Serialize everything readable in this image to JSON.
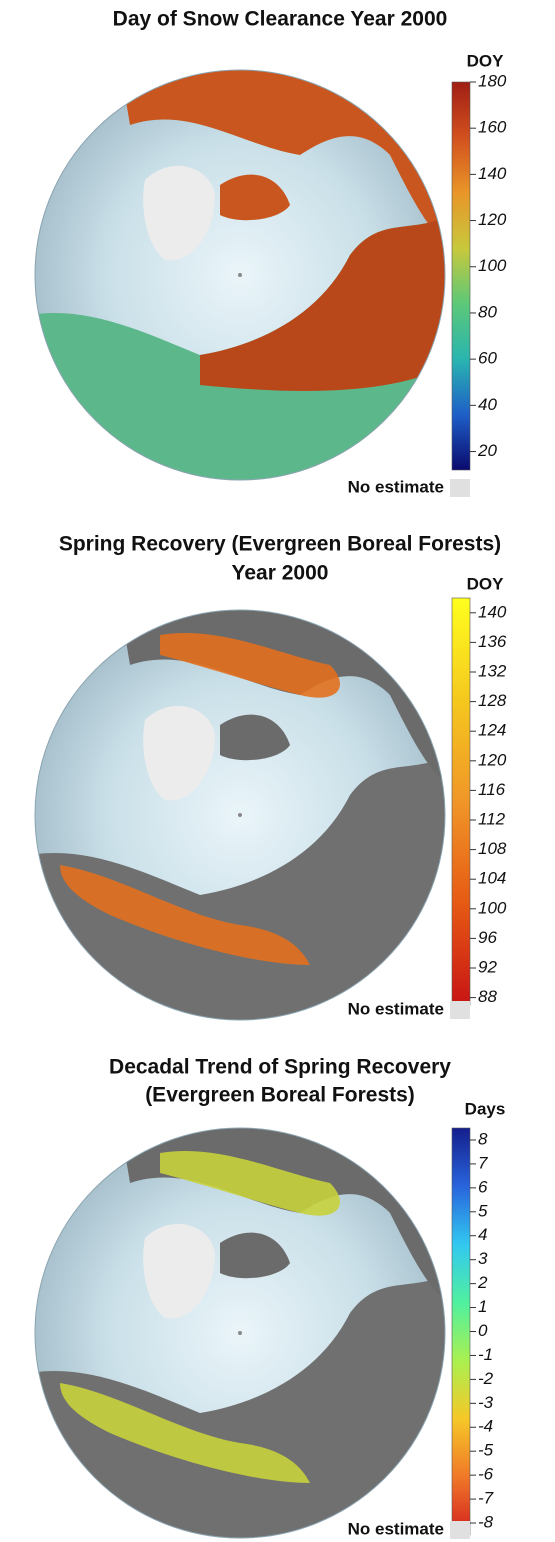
{
  "panels": [
    {
      "title": [
        "Day of Snow Clearance Year 2000"
      ],
      "unit": "DOY",
      "lim": [
        12,
        180
      ],
      "ticks": [
        20,
        40,
        60,
        80,
        100,
        120,
        140,
        160,
        180
      ],
      "colormap": [
        "#0a0a6e",
        "#1e5fc8",
        "#2ab5b0",
        "#5cc878",
        "#c8c83c",
        "#e89628",
        "#d2501e",
        "#a01e14"
      ],
      "no_estimate": "No estimate"
    },
    {
      "title": [
        "Spring Recovery (Evergreen Boreal Forests)",
        "Year 2000"
      ],
      "unit": "DOY",
      "lim": [
        87,
        142
      ],
      "ticks": [
        88,
        92,
        96,
        100,
        104,
        108,
        112,
        116,
        120,
        124,
        128,
        132,
        136,
        140
      ],
      "colormap": [
        "#c81414",
        "#e65a14",
        "#f09628",
        "#f5c81e",
        "#ffff1e"
      ],
      "no_estimate": "No estimate"
    },
    {
      "title": [
        "Decadal Trend of Spring Recovery",
        "(Evergreen Boreal Forests)"
      ],
      "unit": "Days",
      "lim": [
        -8.5,
        8.5
      ],
      "ticks": [
        -8,
        -7,
        -6,
        -5,
        -4,
        -3,
        -2,
        -1,
        0,
        1,
        2,
        3,
        4,
        5,
        6,
        7,
        8
      ],
      "colormap": [
        "#d21e1e",
        "#f07828",
        "#f5c828",
        "#aaf050",
        "#50f0a0",
        "#32c8f0",
        "#2864dc",
        "#141e8c"
      ],
      "no_estimate": "No estimate"
    }
  ]
}
